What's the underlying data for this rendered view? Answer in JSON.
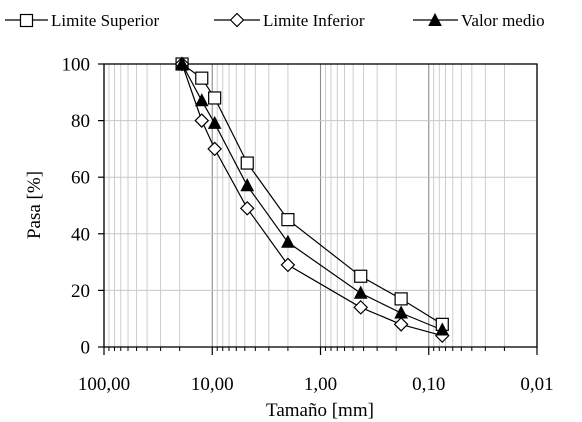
{
  "chart_data": {
    "type": "line",
    "xlabel": "Tamaño [mm]",
    "ylabel": "Pasa [%]",
    "x_scale": "log",
    "x_reversed": true,
    "xlim": [
      100,
      0.01
    ],
    "ylim": [
      0,
      100
    ],
    "x_ticks": [
      100,
      10,
      1,
      0.1,
      0.01
    ],
    "x_tick_labels": [
      "100,00",
      "10,00",
      "1,00",
      "0,10",
      "0,01"
    ],
    "y_ticks": [
      0,
      20,
      40,
      60,
      80,
      100
    ],
    "y_tick_labels": [
      "0",
      "20",
      "40",
      "60",
      "80",
      "100"
    ],
    "grid": true,
    "legend_position": "top",
    "x": [
      19.0,
      12.5,
      9.5,
      4.75,
      2.0,
      0.425,
      0.18,
      0.075
    ],
    "series": [
      {
        "name": "Limite Superior",
        "marker": "square-open",
        "values": [
          100,
          95,
          88,
          65,
          45,
          25,
          17,
          8
        ]
      },
      {
        "name": "Limite Inferior",
        "marker": "diamond-open",
        "values": [
          100,
          80,
          70,
          49,
          29,
          14,
          8,
          4
        ]
      },
      {
        "name": "Valor medio",
        "marker": "triangle-filled",
        "values": [
          100,
          87,
          79,
          57,
          37,
          19,
          12,
          6
        ]
      }
    ]
  }
}
